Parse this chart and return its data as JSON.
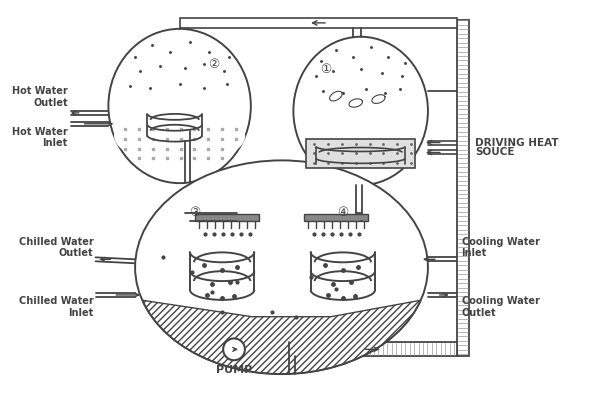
{
  "bg": "#ffffff",
  "lc": "#444444",
  "labels": {
    "hot_water_outlet": "Hot Water\nOutlet",
    "hot_water_inlet": "Hot Water\nInlet",
    "chilled_water_outlet": "Chilled Water\nOutlet",
    "chilled_water_inlet": "Chilled Water\nInlet",
    "cooling_water_inlet": "Cooling Water\nInlet",
    "cooling_water_outlet": "Cooling Water\nOutlet",
    "driving_heat": "DRIVING HEAT",
    "souce": "SOUCE",
    "pump": "PUMP",
    "num1": "①",
    "num2": "②",
    "num3": "③",
    "num4": "④"
  }
}
